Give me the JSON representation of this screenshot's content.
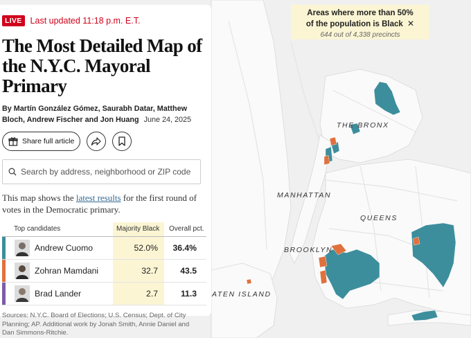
{
  "live": {
    "badge": "LIVE",
    "updated": "Last updated 11:18 p.m. E.T."
  },
  "headline": {
    "line1": "The Most Detailed Map of",
    "line2": "the N.Y.C. Mayoral Primary"
  },
  "byline": {
    "line1": "By Martín González Gómez, Saurabh Datar, Matthew",
    "line2": "Bloch, Andrew Fischer and Jon Huang",
    "date": "June 24, 2025"
  },
  "actions": {
    "share_label": "Share full article"
  },
  "search": {
    "placeholder": "Search by address, neighborhood or ZIP code"
  },
  "intro": {
    "before": "This map shows the ",
    "link": "latest results",
    "after": " for the first round of votes in the Democratic primary."
  },
  "table": {
    "headers": {
      "candidates": "Top candidates",
      "majority": "Majority Black",
      "overall": "Overall pct."
    },
    "rows": [
      {
        "name": "Andrew Cuomo",
        "majority": "52.0%",
        "overall": "36.4%",
        "color": "#3d8e9c"
      },
      {
        "name": "Zohran Mamdani",
        "majority": "32.7",
        "overall": "43.5",
        "color": "#e0713d"
      },
      {
        "name": "Brad Lander",
        "majority": "2.7",
        "overall": "11.3",
        "color": "#7e5ca8"
      }
    ]
  },
  "sources": "Sources: N.Y.C. Board of Elections; U.S. Census; Dept. of City Planning; AP.  Additional work by Jonah Smith, Annie Daniel and Dan Simmons-Ritchie.",
  "legend": {
    "title_line1": "Areas where more than 50%",
    "title_line2": "of the population is Black",
    "close_glyph": "✕",
    "subtitle": "644 out of 4,338 precincts"
  },
  "map_labels": {
    "bronx": "THE BRONX",
    "manhattan": "MANHATTAN",
    "queens": "QUEENS",
    "brooklyn": "BROOKLYN",
    "staten": "ATEN ISLAND"
  },
  "colors": {
    "cuomo": "#3d8e9c",
    "mamdani": "#e0713d",
    "lander": "#7e5ca8",
    "highlight": "#fbf5d4",
    "live": "#d0021b"
  }
}
